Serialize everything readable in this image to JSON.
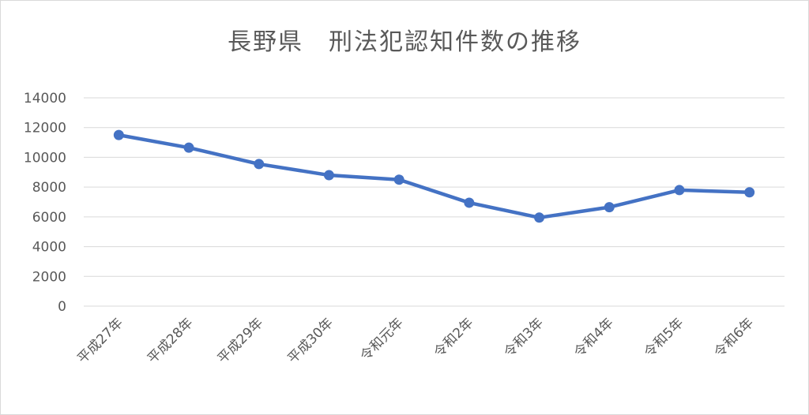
{
  "chart_data": {
    "type": "line",
    "title": "長野県　刑法犯認知件数の推移",
    "categories": [
      "平成27年",
      "平成28年",
      "平成29年",
      "平成30年",
      "令和元年",
      "令和2年",
      "令和3年",
      "令和4年",
      "令和5年",
      "令和6年"
    ],
    "series": [
      {
        "values": [
          11500,
          10650,
          9550,
          8800,
          8500,
          6950,
          5950,
          6650,
          7800,
          7650
        ],
        "color": "#4472c4"
      }
    ],
    "yticks": [
      0,
      2000,
      4000,
      6000,
      8000,
      10000,
      12000,
      14000
    ],
    "ylim": [
      0,
      14000
    ],
    "grid": true,
    "legend": "none"
  }
}
